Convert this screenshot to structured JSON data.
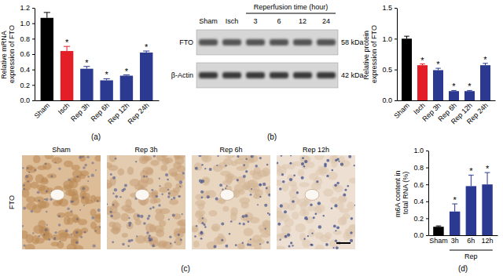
{
  "panel_labels": [
    "(a)",
    "(b)",
    "(c)",
    "(d)"
  ],
  "chart_data": [
    {
      "type": "bar",
      "ylabel": "Relative mRNA expression of FTO",
      "categories": [
        "Sham",
        "Isch",
        "Rep 3h",
        "Rep 6h",
        "Rep 12h",
        "Rep 24h"
      ],
      "values": [
        1.07,
        0.64,
        0.41,
        0.26,
        0.32,
        0.62
      ],
      "errors": [
        0.07,
        0.06,
        0.03,
        0.02,
        0.01,
        0.02
      ],
      "colors": [
        "#000000",
        "#e41e26",
        "#2b3990",
        "#2b3990",
        "#2b3990",
        "#2b3990"
      ],
      "ylim": [
        0,
        1.2
      ],
      "yticks": [
        {
          "value": 0,
          "label": "0.0"
        },
        0.2,
        0.4,
        0.6,
        0.8,
        {
          "value": 1,
          "label": "1.0"
        },
        1.2
      ],
      "annotations": [
        {
          "category": "Isch",
          "text": "*"
        },
        {
          "category": "Rep 3h",
          "text": "*"
        },
        {
          "category": "Rep 6h",
          "text": "*"
        },
        {
          "category": "Rep 12h",
          "text": "*"
        },
        {
          "category": "Rep 24h",
          "text": "*"
        }
      ]
    },
    {
      "type": "bar",
      "ylabel": "Relative protein expression of FTO",
      "categories": [
        "Sham",
        "Isch",
        "Rep 3h",
        "Rep 6h",
        "Rep 12h",
        "Rep 24h"
      ],
      "values": [
        1.0,
        0.57,
        0.49,
        0.15,
        0.15,
        0.57
      ],
      "errors": [
        0.04,
        0.02,
        0.03,
        0.01,
        0.01,
        0.03
      ],
      "colors": [
        "#000000",
        "#e41e26",
        "#2b3990",
        "#2b3990",
        "#2b3990",
        "#2b3990"
      ],
      "ylim": [
        0,
        1.5
      ],
      "yticks": [
        {
          "value": 0,
          "label": "0.0"
        },
        0.5,
        {
          "value": 1,
          "label": "1.0"
        },
        1.5
      ],
      "annotations": [
        {
          "category": "Isch",
          "text": "*"
        },
        {
          "category": "Rep 3h",
          "text": "*"
        },
        {
          "category": "Rep 6h",
          "text": "*"
        },
        {
          "category": "Rep 12h",
          "text": "*"
        },
        {
          "category": "Rep 24h",
          "text": "*"
        }
      ]
    },
    {
      "type": "bar",
      "ylabel": "m6A content in total RNA (%)",
      "xlabel": "Rep",
      "categories": [
        "Sham",
        "3h",
        "6h",
        "12h"
      ],
      "values": [
        0.1,
        0.28,
        0.58,
        0.6
      ],
      "errors": [
        0.01,
        0.09,
        0.13,
        0.14
      ],
      "colors": [
        "#000000",
        "#2b3990",
        "#2b3990",
        "#2b3990"
      ],
      "ylim": [
        0,
        1.0
      ],
      "yticks": [
        {
          "value": 0,
          "label": "0.0"
        },
        0.2,
        0.4,
        0.6,
        0.8,
        {
          "value": 1,
          "label": "1.0"
        }
      ],
      "annotations": [
        {
          "category": "3h",
          "text": "*"
        },
        {
          "category": "6h",
          "text": "*"
        },
        {
          "category": "12h",
          "text": "*"
        }
      ]
    }
  ],
  "blot": {
    "header": "Reperfusion time (hour)",
    "lanes": [
      "Sham",
      "Isch",
      "3",
      "6",
      "12",
      "24"
    ],
    "rows": [
      {
        "protein": "FTO",
        "size": "58 kDa"
      },
      {
        "protein": "β-Actin",
        "size": "42 kDa"
      }
    ]
  },
  "histology": {
    "row_label": "FTO",
    "panels": [
      "Sham",
      "Rep 3h",
      "Rep 6h",
      "Rep 12h"
    ]
  }
}
